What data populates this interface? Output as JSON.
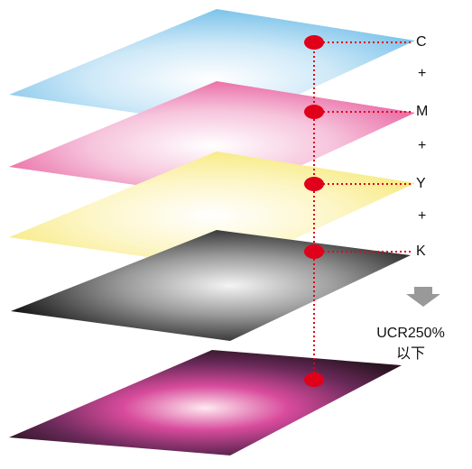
{
  "layers": [
    {
      "label": "C"
    },
    {
      "label": "M"
    },
    {
      "label": "Y"
    },
    {
      "label": "K"
    }
  ],
  "operators": [
    "+",
    "+",
    "+"
  ],
  "result": {
    "lines": [
      "UCR250%",
      "以下"
    ]
  }
}
